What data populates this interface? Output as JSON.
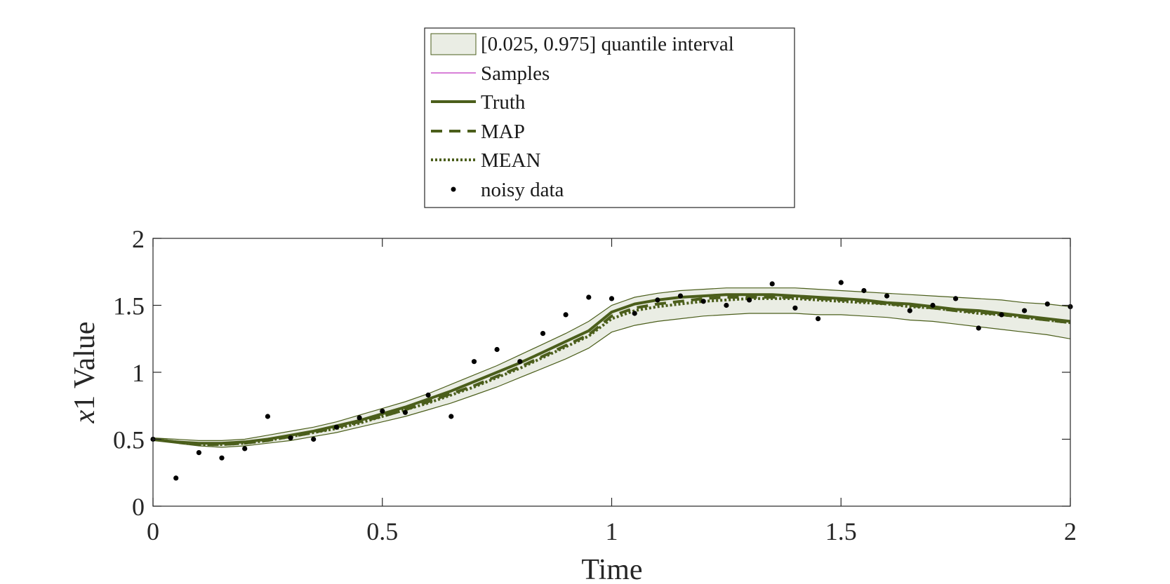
{
  "chart_data": {
    "type": "line",
    "xlabel": "Time",
    "ylabel_italic": "x",
    "ylabel_rest": "1 Value",
    "xlim": [
      0,
      2
    ],
    "ylim": [
      0,
      2
    ],
    "xticks": [
      0,
      0.5,
      1,
      1.5,
      2
    ],
    "yticks": [
      0,
      0.5,
      1,
      1.5,
      2
    ],
    "xtick_labels": [
      "0",
      "0.5",
      "1",
      "1.5",
      "2"
    ],
    "ytick_labels": [
      "0",
      "0.5",
      "1",
      "1.5",
      "2"
    ],
    "grid": false,
    "legend_position": "top-center",
    "legend": [
      {
        "label": "[0.025, 0.975] quantile interval",
        "kind": "patch"
      },
      {
        "label": "Samples",
        "kind": "thin-line"
      },
      {
        "label": "Truth",
        "kind": "solid"
      },
      {
        "label": "MAP",
        "kind": "dashed"
      },
      {
        "label": "MEAN",
        "kind": "dotted"
      },
      {
        "label": "noisy data",
        "kind": "marker"
      }
    ],
    "colors": {
      "line": "#4b5e1b",
      "band_fill": "#eaede4",
      "band_edge": "#4b5e1b",
      "samples": "#b000b0",
      "points": "#000000",
      "axes": "#262626"
    },
    "x": [
      0,
      0.05,
      0.1,
      0.15,
      0.2,
      0.25,
      0.3,
      0.35,
      0.4,
      0.45,
      0.5,
      0.55,
      0.6,
      0.65,
      0.7,
      0.75,
      0.8,
      0.85,
      0.9,
      0.95,
      1.0,
      1.05,
      1.1,
      1.15,
      1.2,
      1.25,
      1.3,
      1.35,
      1.4,
      1.45,
      1.5,
      1.55,
      1.6,
      1.65,
      1.7,
      1.75,
      1.8,
      1.85,
      1.9,
      1.95,
      2.0
    ],
    "series": [
      {
        "name": "Truth",
        "style": "solid",
        "values": [
          0.5,
          0.48,
          0.47,
          0.47,
          0.48,
          0.5,
          0.53,
          0.56,
          0.6,
          0.64,
          0.69,
          0.74,
          0.8,
          0.86,
          0.93,
          1.0,
          1.07,
          1.15,
          1.23,
          1.31,
          1.45,
          1.51,
          1.54,
          1.56,
          1.57,
          1.58,
          1.58,
          1.58,
          1.57,
          1.56,
          1.55,
          1.54,
          1.52,
          1.51,
          1.49,
          1.47,
          1.46,
          1.44,
          1.42,
          1.4,
          1.38
        ]
      },
      {
        "name": "MAP",
        "style": "dashed",
        "values": [
          0.5,
          0.48,
          0.46,
          0.46,
          0.47,
          0.49,
          0.52,
          0.55,
          0.59,
          0.63,
          0.67,
          0.72,
          0.78,
          0.84,
          0.9,
          0.97,
          1.04,
          1.12,
          1.2,
          1.28,
          1.42,
          1.48,
          1.51,
          1.53,
          1.55,
          1.56,
          1.56,
          1.56,
          1.56,
          1.55,
          1.54,
          1.53,
          1.51,
          1.5,
          1.48,
          1.46,
          1.45,
          1.43,
          1.41,
          1.39,
          1.37
        ]
      },
      {
        "name": "MEAN",
        "style": "dotted",
        "values": [
          0.5,
          0.48,
          0.46,
          0.46,
          0.47,
          0.49,
          0.52,
          0.55,
          0.58,
          0.62,
          0.67,
          0.72,
          0.77,
          0.83,
          0.89,
          0.96,
          1.03,
          1.11,
          1.19,
          1.27,
          1.4,
          1.46,
          1.49,
          1.51,
          1.53,
          1.54,
          1.55,
          1.55,
          1.55,
          1.54,
          1.53,
          1.52,
          1.51,
          1.49,
          1.48,
          1.46,
          1.44,
          1.43,
          1.41,
          1.39,
          1.37
        ]
      }
    ],
    "band": {
      "name": "[0.025, 0.975] quantile interval",
      "upper": [
        0.51,
        0.5,
        0.49,
        0.49,
        0.5,
        0.53,
        0.56,
        0.59,
        0.63,
        0.68,
        0.73,
        0.78,
        0.84,
        0.91,
        0.98,
        1.05,
        1.13,
        1.21,
        1.29,
        1.38,
        1.5,
        1.56,
        1.59,
        1.61,
        1.62,
        1.63,
        1.63,
        1.63,
        1.63,
        1.62,
        1.61,
        1.6,
        1.59,
        1.58,
        1.57,
        1.56,
        1.55,
        1.54,
        1.52,
        1.51,
        1.49
      ],
      "lower": [
        0.49,
        0.47,
        0.45,
        0.44,
        0.45,
        0.47,
        0.49,
        0.52,
        0.55,
        0.59,
        0.63,
        0.67,
        0.72,
        0.77,
        0.83,
        0.89,
        0.96,
        1.03,
        1.1,
        1.18,
        1.3,
        1.35,
        1.38,
        1.4,
        1.42,
        1.43,
        1.44,
        1.44,
        1.44,
        1.43,
        1.43,
        1.42,
        1.41,
        1.39,
        1.38,
        1.36,
        1.34,
        1.32,
        1.3,
        1.28,
        1.25
      ]
    },
    "noisy_data": {
      "name": "noisy data",
      "x": [
        0,
        0.05,
        0.1,
        0.15,
        0.2,
        0.25,
        0.3,
        0.35,
        0.4,
        0.45,
        0.5,
        0.55,
        0.6,
        0.65,
        0.7,
        0.75,
        0.8,
        0.85,
        0.9,
        0.95,
        1.0,
        1.05,
        1.1,
        1.15,
        1.2,
        1.25,
        1.3,
        1.35,
        1.4,
        1.45,
        1.5,
        1.55,
        1.6,
        1.65,
        1.7,
        1.75,
        1.8,
        1.85,
        1.9,
        1.95,
        2.0
      ],
      "y": [
        0.5,
        0.21,
        0.4,
        0.36,
        0.43,
        0.67,
        0.51,
        0.5,
        0.59,
        0.66,
        0.71,
        0.7,
        0.83,
        0.67,
        1.08,
        1.17,
        1.08,
        1.29,
        1.43,
        1.56,
        1.55,
        1.44,
        1.54,
        1.57,
        1.53,
        1.5,
        1.54,
        1.66,
        1.48,
        1.4,
        1.67,
        1.61,
        1.57,
        1.46,
        1.5,
        1.55,
        1.33,
        1.43,
        1.46,
        1.51,
        1.49
      ]
    }
  }
}
